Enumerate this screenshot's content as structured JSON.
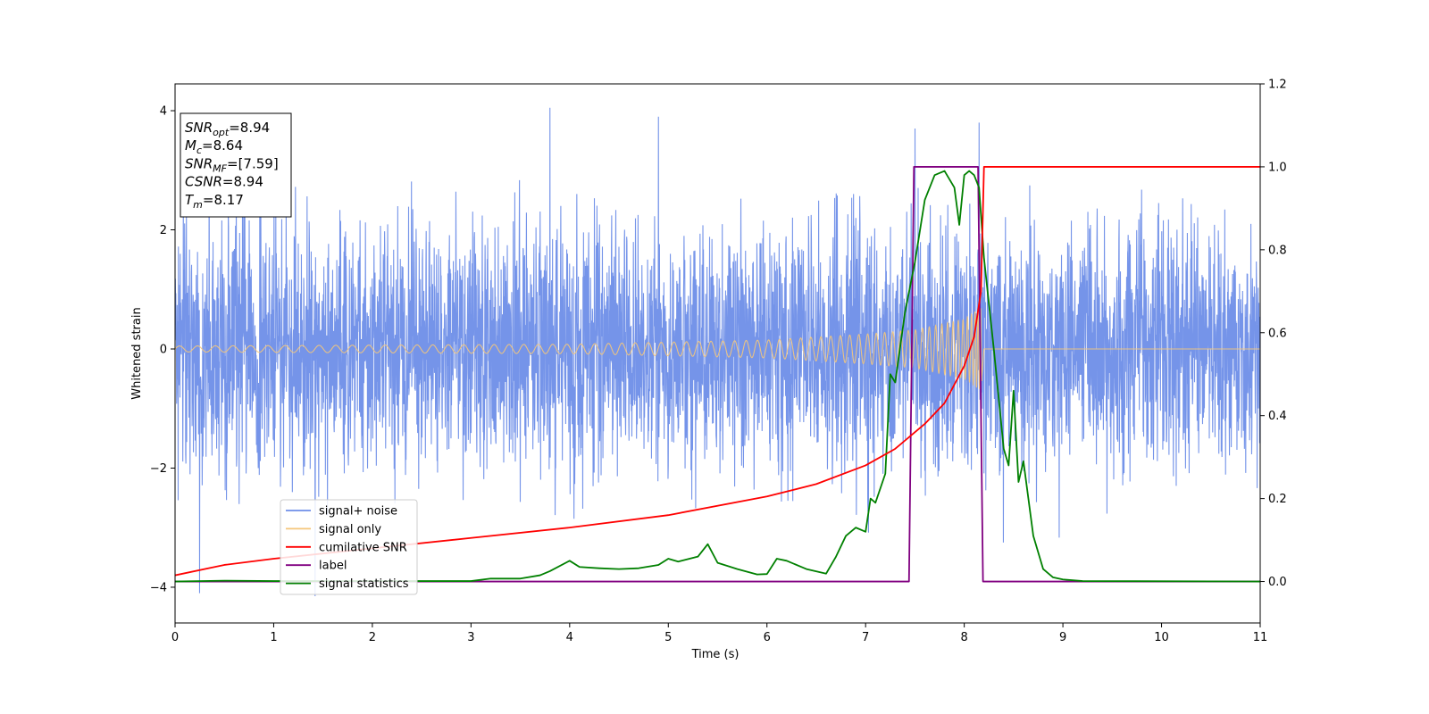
{
  "chart_data": {
    "type": "line",
    "xlabel": "Time (s)",
    "ylabel": "Whitened strain",
    "xlim": [
      0,
      11
    ],
    "ylim_left": [
      -4.6,
      4.45
    ],
    "ylim_right": [
      -0.1,
      1.2
    ],
    "xticks": [
      "0",
      "1",
      "2",
      "3",
      "4",
      "5",
      "6",
      "7",
      "8",
      "9",
      "10",
      "11"
    ],
    "yticks_left": [
      "4",
      "2",
      "0",
      "−2",
      "−4"
    ],
    "yticks_right": [
      "1.2",
      "1.0",
      "0.8",
      "0.6",
      "0.4",
      "0.2",
      "0.0"
    ],
    "info_box": [
      {
        "main": "SNR",
        "sub": "opt",
        "value": "=8.94"
      },
      {
        "main": "M",
        "sub": "c",
        "value": "=8.64"
      },
      {
        "main": "SNR",
        "sub": "MF",
        "value": "=[7.59]"
      },
      {
        "main": "CSNR",
        "sub": "",
        "value": "=8.94"
      },
      {
        "main": "T",
        "sub": "m",
        "value": "=8.17"
      }
    ],
    "legend": [
      {
        "label": "signal+ noise",
        "color": "#6e8ee8"
      },
      {
        "label": "signal only",
        "color": "#f5c67a"
      },
      {
        "label": "cumilative SNR",
        "color": "#ff0000"
      },
      {
        "label": "label",
        "color": "#800080"
      },
      {
        "label": "signal statistics",
        "color": "#008000"
      }
    ],
    "legend_placement": "lower-left",
    "series": [
      {
        "name": "signal+ noise",
        "axis": "left",
        "color": "#6e8ee8",
        "description_stats": {
          "std": 1.0,
          "t_start": 0,
          "t_end": 11
        },
        "notable_peaks": [
          [
            0.25,
            -4.1
          ],
          [
            1.42,
            -4.15
          ],
          [
            3.8,
            4.05
          ],
          [
            4.9,
            3.9
          ],
          [
            7.5,
            3.7
          ],
          [
            8.15,
            3.8
          ]
        ]
      },
      {
        "name": "signal only",
        "axis": "left",
        "color": "#f5c67a",
        "envelope": {
          "x": [
            0,
            4,
            6,
            7,
            7.5,
            8,
            8.17,
            8.2,
            11
          ],
          "amp": [
            0.05,
            0.08,
            0.15,
            0.25,
            0.32,
            0.5,
            0.7,
            0.0,
            0.0
          ]
        }
      },
      {
        "name": "cumilative SNR",
        "axis": "right",
        "x": [
          0,
          0.5,
          1,
          2,
          3,
          4,
          5,
          6,
          6.5,
          7,
          7.3,
          7.6,
          7.8,
          8.0,
          8.1,
          8.17,
          8.2,
          11
        ],
        "y": [
          0.015,
          0.04,
          0.055,
          0.08,
          0.105,
          0.13,
          0.16,
          0.205,
          0.235,
          0.28,
          0.32,
          0.38,
          0.43,
          0.52,
          0.59,
          0.7,
          1.0,
          1.0
        ]
      },
      {
        "name": "label",
        "axis": "right",
        "x": [
          0,
          7.44,
          7.49,
          8.14,
          8.19,
          11
        ],
        "y": [
          0,
          0,
          1,
          1,
          0,
          0
        ]
      },
      {
        "name": "signal statistics",
        "axis": "right",
        "x": [
          0,
          0.5,
          1,
          2,
          3,
          3.2,
          3.5,
          3.7,
          3.8,
          4.0,
          4.1,
          4.3,
          4.5,
          4.7,
          4.9,
          5.0,
          5.1,
          5.3,
          5.4,
          5.5,
          5.7,
          5.9,
          6.0,
          6.1,
          6.2,
          6.4,
          6.6,
          6.7,
          6.8,
          6.9,
          7.0,
          7.05,
          7.1,
          7.2,
          7.25,
          7.3,
          7.4,
          7.5,
          7.6,
          7.7,
          7.8,
          7.9,
          7.95,
          8.0,
          8.05,
          8.1,
          8.15,
          8.2,
          8.3,
          8.4,
          8.45,
          8.5,
          8.55,
          8.6,
          8.7,
          8.8,
          8.9,
          9.0,
          9.2,
          11
        ],
        "y": [
          0.0,
          0.002,
          0.001,
          0.001,
          0.001,
          0.007,
          0.007,
          0.015,
          0.025,
          0.05,
          0.035,
          0.032,
          0.03,
          0.032,
          0.04,
          0.055,
          0.048,
          0.06,
          0.09,
          0.045,
          0.03,
          0.017,
          0.018,
          0.055,
          0.05,
          0.03,
          0.019,
          0.06,
          0.11,
          0.13,
          0.12,
          0.2,
          0.19,
          0.26,
          0.5,
          0.48,
          0.65,
          0.77,
          0.92,
          0.98,
          0.99,
          0.95,
          0.86,
          0.98,
          0.99,
          0.98,
          0.95,
          0.78,
          0.56,
          0.32,
          0.28,
          0.46,
          0.24,
          0.29,
          0.11,
          0.03,
          0.01,
          0.005,
          0.001,
          0.0
        ]
      }
    ]
  }
}
